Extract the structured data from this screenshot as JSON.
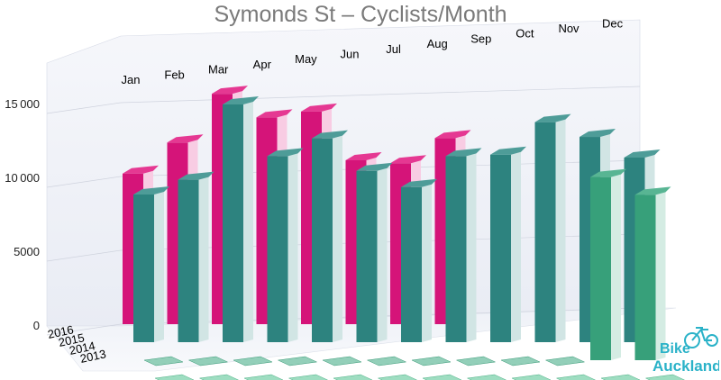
{
  "chart_data": {
    "type": "bar",
    "title": "Symonds St – Cyclists/Month",
    "categories": [
      "Jan",
      "Feb",
      "Mar",
      "Apr",
      "May",
      "Jun",
      "Jul",
      "Aug",
      "Sep",
      "Oct",
      "Nov",
      "Dec"
    ],
    "y_ticks": [
      "0",
      "5000",
      "10000",
      "15000"
    ],
    "ylim": [
      0,
      18000
    ],
    "grid": true,
    "series": [
      {
        "name": "2016",
        "color": "#e0157f",
        "values": [
          10200,
          12300,
          15600,
          14000,
          14400,
          11100,
          10900,
          12600,
          null,
          null,
          null,
          null
        ]
      },
      {
        "name": "2015",
        "color": "#2f8a86",
        "values": [
          10000,
          11000,
          16100,
          12600,
          13800,
          11600,
          10500,
          12600,
          12700,
          14900,
          13900,
          12500
        ]
      },
      {
        "name": "2014",
        "color": "#3aa880",
        "values": [
          0,
          0,
          0,
          0,
          0,
          0,
          0,
          0,
          0,
          0,
          12400,
          11200
        ]
      },
      {
        "name": "2013",
        "color": "#4fc18f",
        "values": [
          0,
          0,
          0,
          0,
          0,
          0,
          0,
          0,
          0,
          0,
          0,
          0
        ]
      }
    ]
  },
  "logo": {
    "line1": "Bike",
    "line2": "Auckland",
    "icon": "bicycle-icon"
  }
}
